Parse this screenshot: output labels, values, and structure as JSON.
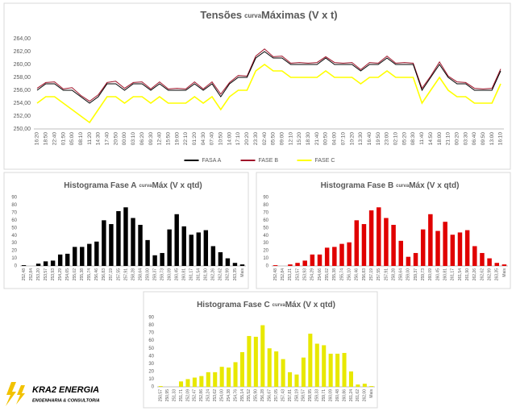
{
  "chart_data": [
    {
      "type": "line",
      "title": [
        "Tensões",
        "curva",
        "Máximas (V x t)"
      ],
      "categories": [
        "16:20",
        "18:50",
        "22:40",
        "01:50",
        "05:00",
        "08:10",
        "11:20",
        "14:30",
        "17:40",
        "20:50",
        "00:00",
        "03:10",
        "06:20",
        "09:30",
        "12:40",
        "15:50",
        "19:00",
        "22:10",
        "01:20",
        "04:30",
        "07:40",
        "10:50",
        "14:00",
        "17:10",
        "20:20",
        "23:30",
        "02:40",
        "05:50",
        "09:00",
        "12:10",
        "15:20",
        "18:30",
        "21:40",
        "00:50",
        "04:00",
        "07:10",
        "10:20",
        "13:30",
        "16:40",
        "19:50",
        "23:00",
        "02:10",
        "05:20",
        "08:30",
        "11:40",
        "14:50",
        "18:00",
        "21:10",
        "00:20",
        "03:30",
        "06:40",
        "09:50",
        "13:00",
        "16:10"
      ],
      "series": [
        {
          "name": "FASA A",
          "color": "#000000",
          "values": [
            256,
            257,
            257,
            256,
            256,
            255,
            254,
            255,
            257,
            257,
            256,
            257,
            257,
            256,
            257,
            256,
            256,
            256,
            257,
            256,
            257,
            255,
            257,
            258,
            258,
            261,
            262,
            261,
            261,
            260,
            260,
            260,
            260,
            261,
            260,
            260,
            260,
            259,
            260,
            260,
            261,
            260,
            260,
            260,
            256,
            258,
            260,
            258,
            257,
            257,
            256,
            256,
            256,
            259
          ]
        },
        {
          "name": "FASE B",
          "color": "#a0142a",
          "values": [
            256.3,
            257.2,
            257.3,
            256.2,
            256.4,
            255.2,
            254.3,
            255.3,
            257.2,
            257.4,
            256.3,
            257.2,
            257.3,
            256.2,
            257.3,
            256.2,
            256.3,
            256.2,
            257.3,
            256.2,
            257.3,
            255.4,
            257.2,
            258.3,
            258.2,
            261.3,
            262.4,
            261.2,
            261.3,
            260.2,
            260.3,
            260.2,
            260.3,
            261.2,
            260.3,
            260.2,
            260.3,
            259.2,
            260.3,
            260.2,
            261.3,
            260.2,
            260.3,
            260.2,
            256.3,
            258.2,
            260.4,
            258.2,
            257.3,
            257.2,
            256.3,
            256.2,
            256.3,
            259.3
          ]
        },
        {
          "name": "FASE C",
          "color": "#ffff00",
          "values": [
            254,
            255,
            255,
            254,
            253,
            252,
            251,
            253,
            255,
            255,
            254,
            255,
            255,
            254,
            255,
            254,
            254,
            254,
            255,
            254,
            255,
            253,
            255,
            256,
            256,
            259,
            260,
            259,
            259,
            258,
            258,
            258,
            258,
            259,
            258,
            258,
            258,
            257,
            258,
            258,
            259,
            258,
            258,
            258,
            254,
            256,
            258,
            256,
            255,
            255,
            254,
            254,
            254,
            257
          ]
        }
      ],
      "ylim": [
        250,
        264
      ],
      "yticks": [
        {
          "value": 250,
          "label": "250,00"
        },
        {
          "value": 252,
          "label": "252,00"
        },
        {
          "value": 254,
          "label": "254,00"
        },
        {
          "value": 256,
          "label": "256,00"
        },
        {
          "value": 258,
          "label": "258,00"
        },
        {
          "value": 260,
          "label": "260,00"
        },
        {
          "value": 262,
          "label": "262,00"
        },
        {
          "value": 264,
          "label": "264,00"
        }
      ]
    },
    {
      "type": "bar",
      "title": [
        "Histograma Fase A",
        "curva",
        "Máx (V x qtd)"
      ],
      "color": "#000000",
      "categories": [
        "252,48",
        "252,84",
        "253,20",
        "253,57",
        "253,93",
        "254,29",
        "254,65",
        "255,02",
        "255,38",
        "255,74",
        "256,46",
        "256,83",
        "257,19",
        "257,55",
        "257,91",
        "258,28",
        "258,64",
        "259,00",
        "259,37",
        "259,73",
        "260,09",
        "260,45",
        "260,81",
        "261,17",
        "261,54",
        "261,90",
        "262,26",
        "262,62",
        "262,99",
        "263,35",
        "Mais"
      ],
      "values": [
        1,
        0,
        3,
        6,
        7,
        15,
        16,
        25,
        25,
        29,
        32,
        60,
        55,
        72,
        77,
        63,
        54,
        34,
        14,
        17,
        48,
        68,
        52,
        41,
        44,
        47,
        26,
        18,
        10,
        4,
        2
      ],
      "ylim": [
        0,
        90
      ],
      "yticks": [
        0,
        10,
        20,
        30,
        40,
        50,
        60,
        70,
        80,
        90
      ]
    },
    {
      "type": "bar",
      "title": [
        "Histograma Fase B",
        "curva",
        "Máx (V x qtd)"
      ],
      "color": "#e00000",
      "categories": [
        "252,48",
        "252,84",
        "253,21",
        "253,57",
        "253,93",
        "254,29",
        "254,66",
        "255,02",
        "255,38",
        "255,74",
        "256,10",
        "256,46",
        "256,83",
        "257,19",
        "257,55",
        "257,91",
        "258,28",
        "258,64",
        "259,00",
        "259,37",
        "259,73",
        "260,09",
        "260,45",
        "260,81",
        "261,17",
        "261,54",
        "261,90",
        "262,26",
        "262,62",
        "262,99",
        "263,35",
        "Mais"
      ],
      "values": [
        1,
        0,
        2,
        4,
        7,
        15,
        15,
        24,
        25,
        29,
        31,
        60,
        55,
        73,
        77,
        63,
        54,
        33,
        12,
        17,
        48,
        68,
        46,
        58,
        41,
        44,
        47,
        26,
        17,
        10,
        4,
        2
      ],
      "ylim": [
        0,
        90
      ],
      "yticks": [
        0,
        10,
        20,
        30,
        40,
        50,
        60,
        70,
        80,
        90
      ]
    },
    {
      "type": "bar",
      "title": [
        "Histograma Fase C",
        "curva",
        "Máx (V x qtd)"
      ],
      "color": "#e8e800",
      "categories": [
        "250,57",
        "250,95",
        "251,33",
        "251,71",
        "252,09",
        "252,47",
        "252,86",
        "253,24",
        "253,62",
        "254,00",
        "254,38",
        "254,76",
        "255,14",
        "255,52",
        "255,90",
        "256,28",
        "256,67",
        "257,05",
        "257,43",
        "257,81",
        "258,19",
        "258,57",
        "258,95",
        "259,33",
        "259,71",
        "260,09",
        "260,48",
        "260,86",
        "261,24",
        "261,62",
        "262,00",
        "Mais"
      ],
      "values": [
        1,
        0,
        0,
        7,
        10,
        12,
        14,
        19,
        19,
        26,
        25,
        32,
        45,
        66,
        65,
        80,
        50,
        46,
        36,
        19,
        16,
        38,
        69,
        56,
        54,
        43,
        43,
        44,
        20,
        3,
        4,
        1
      ],
      "ylim": [
        0,
        90
      ],
      "yticks": [
        0,
        10,
        20,
        30,
        40,
        50,
        60,
        70,
        80,
        90
      ]
    }
  ],
  "logo": {
    "name": "KRA2 ENERGIA",
    "tagline": "ENGENHARIA & CONSULTORIA"
  }
}
